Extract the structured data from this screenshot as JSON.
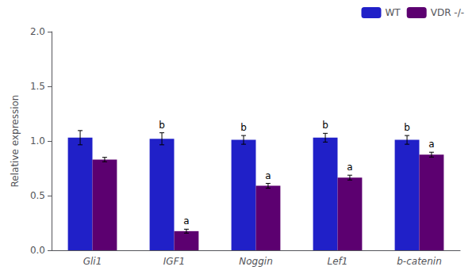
{
  "chart_data": {
    "type": "bar",
    "categories": [
      "Gli1",
      "IGF1",
      "Noggin",
      "Lef1",
      "b-catenin"
    ],
    "series": [
      {
        "name": "WT",
        "color": "#2020c8",
        "values": [
          1.03,
          1.02,
          1.01,
          1.03,
          1.01
        ],
        "errors": [
          0.065,
          0.055,
          0.04,
          0.04,
          0.04
        ],
        "letters": [
          null,
          "b",
          "b",
          "b",
          "b"
        ]
      },
      {
        "name": "VDR -/-",
        "color": "#5c0070",
        "values": [
          0.83,
          0.175,
          0.59,
          0.665,
          0.875
        ],
        "errors": [
          0.02,
          0.018,
          0.022,
          0.022,
          0.022
        ],
        "letters": [
          null,
          "a",
          "a",
          "a",
          "a"
        ]
      }
    ],
    "ylabel": "Relative expression",
    "ylim": [
      0.0,
      2.0
    ],
    "yticks": [
      {
        "value": 0.0,
        "label": "0.0"
      },
      0.5,
      {
        "value": 1.0,
        "label": "1.0"
      },
      1.5,
      {
        "value": 2.0,
        "label": "2.0"
      }
    ],
    "legend": "upper right",
    "grid": false
  }
}
